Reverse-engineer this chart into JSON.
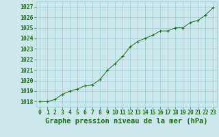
{
  "x": [
    0,
    1,
    2,
    3,
    4,
    5,
    6,
    7,
    8,
    9,
    10,
    11,
    12,
    13,
    14,
    15,
    16,
    17,
    18,
    19,
    20,
    21,
    22,
    23
  ],
  "y": [
    1018.0,
    1018.0,
    1018.2,
    1018.7,
    1019.0,
    1019.2,
    1019.5,
    1019.6,
    1020.1,
    1021.0,
    1021.6,
    1022.3,
    1023.2,
    1023.7,
    1024.0,
    1024.3,
    1024.7,
    1024.7,
    1025.0,
    1025.0,
    1025.5,
    1025.7,
    1026.2,
    1026.9
  ],
  "ylim": [
    1017.5,
    1027.5
  ],
  "yticks": [
    1018,
    1019,
    1020,
    1021,
    1022,
    1023,
    1024,
    1025,
    1026,
    1027
  ],
  "xticks": [
    0,
    1,
    2,
    3,
    4,
    5,
    6,
    7,
    8,
    9,
    10,
    11,
    12,
    13,
    14,
    15,
    16,
    17,
    18,
    19,
    20,
    21,
    22,
    23
  ],
  "xlabel": "Graphe pression niveau de la mer (hPa)",
  "line_color": "#1a6b1a",
  "marker_color": "#1a6b1a",
  "bg_color": "#cce8ec",
  "grid_color": "#99ccd4",
  "tick_label_color": "#1a6b1a",
  "xlabel_color": "#1a6b1a",
  "tick_fontsize": 5.8,
  "xlabel_fontsize": 7.5
}
